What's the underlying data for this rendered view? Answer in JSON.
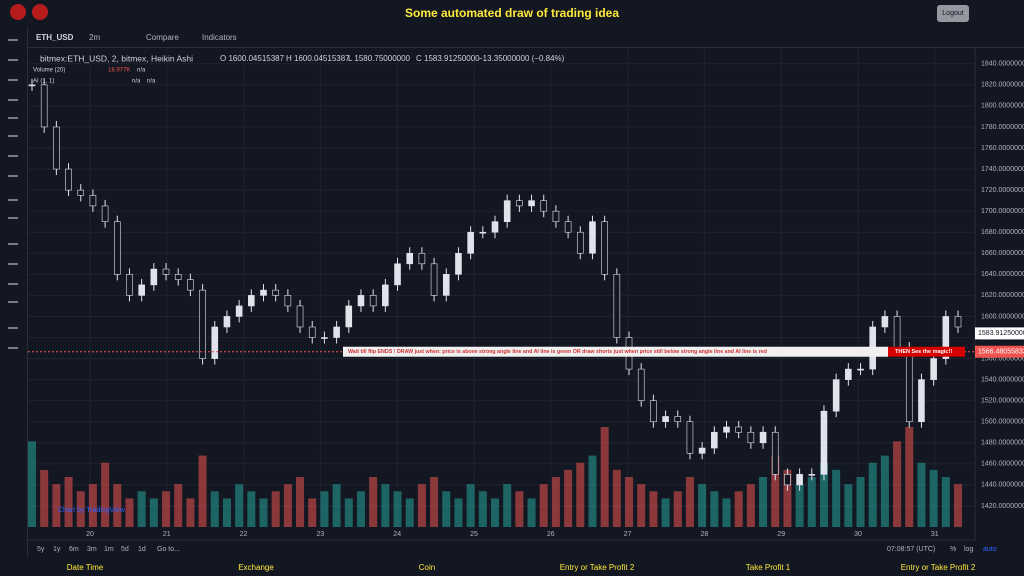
{
  "header": {
    "title": "Some automated draw of trading idea",
    "logout": "Logout"
  },
  "toolbar": {
    "symbol": "ETH_USD",
    "interval": "2m",
    "compare": "Compare",
    "indicators": "Indicators"
  },
  "legend": {
    "series": "bitmex:ETH_USD, 2, bitmex, Heikin Ashi",
    "open": "O 1600.04515387",
    "high": "H 1600.04515387",
    "low": "L 1580.75000000",
    "close": "C 1583.91250000",
    "change": "−13.35000000 (−0.84%)",
    "volume": "Volume (20)",
    "volume_value": "18.977K",
    "volume_na": "n/a",
    "ai": "AI (1, 1)",
    "ai_na1": "n/a",
    "ai_na2": "n/a"
  },
  "chart_data": {
    "type": "candlestick",
    "values": [
      1820,
      1780,
      1740,
      1720,
      1715,
      1705,
      1690,
      1640,
      1620,
      1630,
      1645,
      1640,
      1635,
      1625,
      1560,
      1590,
      1600,
      1610,
      1620,
      1625,
      1620,
      1610,
      1590,
      1580,
      1580,
      1590,
      1610,
      1620,
      1610,
      1630,
      1650,
      1660,
      1650,
      1620,
      1640,
      1660,
      1680,
      1680,
      1690,
      1710,
      1705,
      1710,
      1700,
      1690,
      1680,
      1660,
      1690,
      1640,
      1580,
      1550,
      1520,
      1500,
      1505,
      1500,
      1470,
      1475,
      1490,
      1495,
      1490,
      1480,
      1490,
      1450,
      1440,
      1450,
      1450,
      1510,
      1540,
      1550,
      1550,
      1590,
      1600,
      1570,
      1500,
      1540,
      1560,
      1600,
      1590
    ],
    "volume": [
      60,
      40,
      30,
      35,
      25,
      30,
      45,
      30,
      20,
      25,
      20,
      25,
      30,
      20,
      50,
      25,
      20,
      30,
      25,
      20,
      25,
      30,
      35,
      20,
      25,
      30,
      20,
      25,
      35,
      30,
      25,
      20,
      30,
      35,
      25,
      20,
      30,
      25,
      20,
      30,
      25,
      20,
      30,
      35,
      40,
      45,
      50,
      70,
      40,
      35,
      30,
      25,
      20,
      25,
      35,
      30,
      25,
      20,
      25,
      30,
      35,
      50,
      40,
      30,
      35,
      45,
      40,
      30,
      35,
      45,
      50,
      60,
      70,
      45,
      40,
      35,
      30
    ],
    "ylim": [
      1400,
      1855
    ],
    "yticks": [
      {
        "value": 1420,
        "label": "1420.00000000"
      },
      {
        "value": 1440,
        "label": "1440.00000000"
      },
      {
        "value": 1460,
        "label": "1460.00000000"
      },
      {
        "value": 1480,
        "label": "1480.00000000"
      },
      {
        "value": 1500,
        "label": "1500.00000000"
      },
      {
        "value": 1520,
        "label": "1520.00000000"
      },
      {
        "value": 1540,
        "label": "1540.00000000"
      },
      {
        "value": 1560,
        "label": "1560.00000000"
      },
      {
        "value": 1580,
        "label": "1580.00000000"
      },
      {
        "value": 1600,
        "label": "1600.00000000"
      },
      {
        "value": 1620,
        "label": "1620.00000000"
      },
      {
        "value": 1640,
        "label": "1640.00000000"
      },
      {
        "value": 1660,
        "label": "1660.00000000"
      },
      {
        "value": 1680,
        "label": "1680.00000000"
      },
      {
        "value": 1700,
        "label": "1700.00000000"
      },
      {
        "value": 1720,
        "label": "1720.00000000"
      },
      {
        "value": 1740,
        "label": "1740.00000000"
      },
      {
        "value": 1760,
        "label": "1760.00000000"
      },
      {
        "value": 1780,
        "label": "1780.00000000"
      },
      {
        "value": 1800,
        "label": "1800.00000000"
      },
      {
        "value": 1820,
        "label": "1820.00000000"
      },
      {
        "value": 1840,
        "label": "1840.00000000"
      }
    ],
    "xticks": [
      "20",
      "21",
      "22",
      "23",
      "24",
      "25",
      "26",
      "27",
      "28",
      "29",
      "30",
      "31"
    ],
    "grid": true,
    "up_color": "#e0e3eb",
    "down_color": "#131722",
    "vol_up": "#26a69a",
    "vol_down": "#ef5350",
    "price_line": {
      "value": 1566.48055833,
      "label": "1566.48055833"
    },
    "last_price": {
      "value": 1583.9125,
      "label": "1583.91250000"
    },
    "annotation": "Wait till flip ENDS  !   DRAW just when:  price is above strong angle line and AI line is green        OR        draw shorts just when price still below strong angle line and AI line is red",
    "annotation_end": "THEN See the magic!!",
    "watermark": "Chart by TradingView"
  },
  "bottom_bar": {
    "ranges": [
      "5y",
      "1y",
      "6m",
      "3m",
      "1m",
      "5d",
      "1d",
      "Go to..."
    ],
    "time": "07:08:57 (UTC)",
    "percent": "%",
    "log": "log",
    "auto": "auto"
  },
  "footer": [
    "Date Time",
    "Exchange",
    "Coin",
    "Entry or Take Profit 2",
    "Take Profit 1",
    "Entry or Take Profit 2"
  ]
}
